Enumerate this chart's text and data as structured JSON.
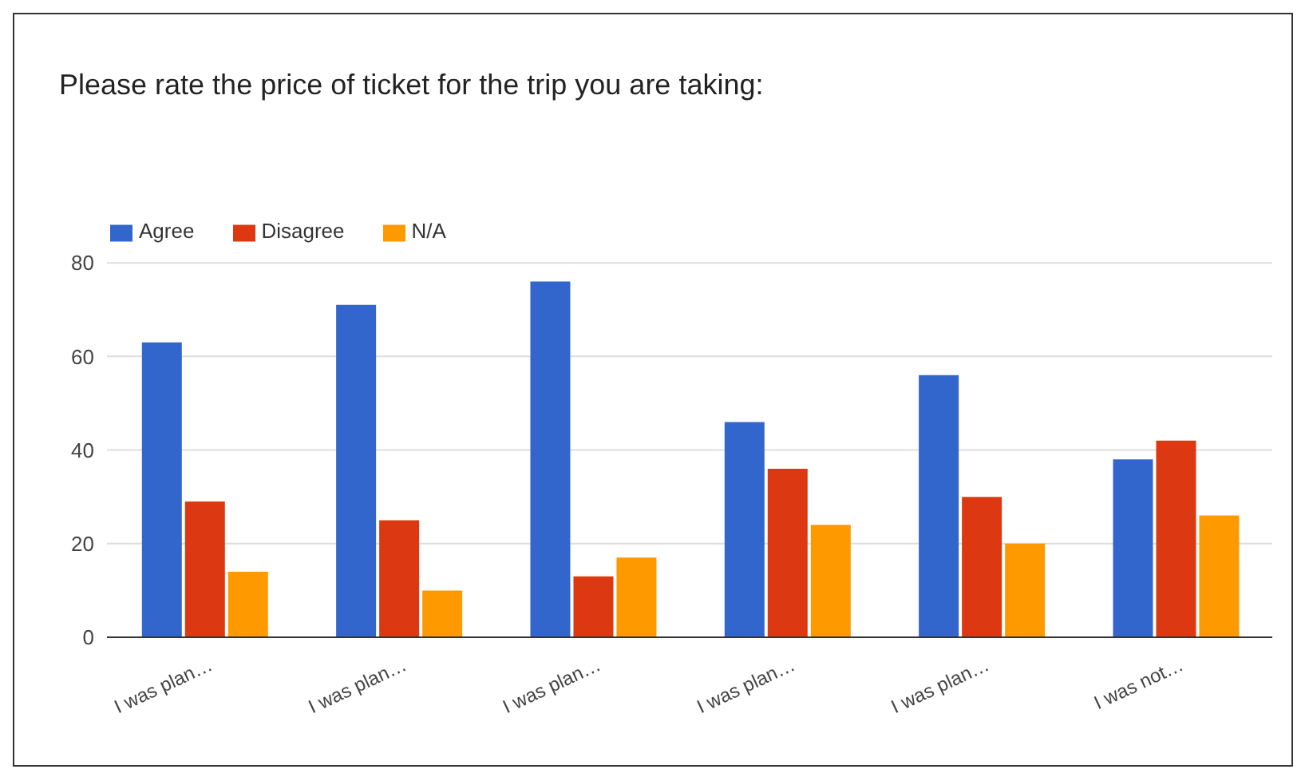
{
  "chart_data": {
    "type": "bar",
    "title": "Please rate the price of ticket for the trip you are taking:",
    "categories": [
      "I was plan…",
      "I was plan…",
      "I was plan…",
      "I was plan…",
      "I was plan…",
      "I was not…"
    ],
    "series": [
      {
        "name": "Agree",
        "color": "#3366cc",
        "values": [
          63,
          71,
          76,
          46,
          56,
          38
        ]
      },
      {
        "name": "Disagree",
        "color": "#dc3912",
        "values": [
          29,
          25,
          13,
          36,
          30,
          42
        ]
      },
      {
        "name": "N/A",
        "color": "#ff9900",
        "values": [
          14,
          10,
          17,
          24,
          20,
          26
        ]
      }
    ],
    "ylim": [
      0,
      80
    ],
    "yticks": [
      0,
      20,
      40,
      60,
      80
    ],
    "grid": "y",
    "legend": "top left"
  }
}
